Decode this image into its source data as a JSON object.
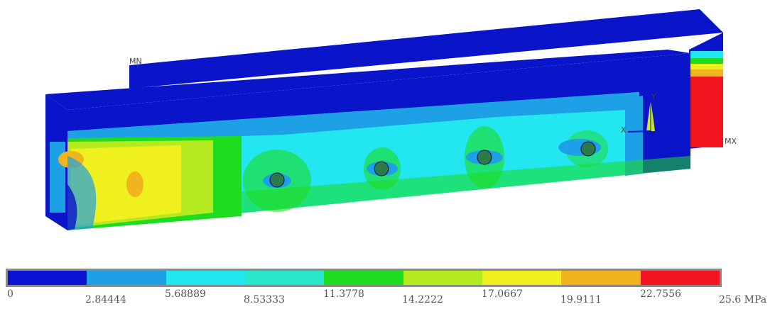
{
  "model_labels": {
    "min": "MN",
    "max": "MX",
    "axis_x": "X",
    "axis_y": "Y"
  },
  "legend": {
    "unit": "MPa",
    "colors": [
      "#0a14d2",
      "#1ea0e6",
      "#22e6f0",
      "#28e6c8",
      "#1edc1e",
      "#b4ea1e",
      "#f0f01e",
      "#f0b41e",
      "#f0141e"
    ],
    "ticks": [
      "0",
      "2.84444",
      "5.68889",
      "8.53333",
      "11.3778",
      "14.2222",
      "17.0667",
      "19.9111",
      "22.7556",
      "25.6"
    ],
    "last_tick_text": "25.6 MPa"
  }
}
